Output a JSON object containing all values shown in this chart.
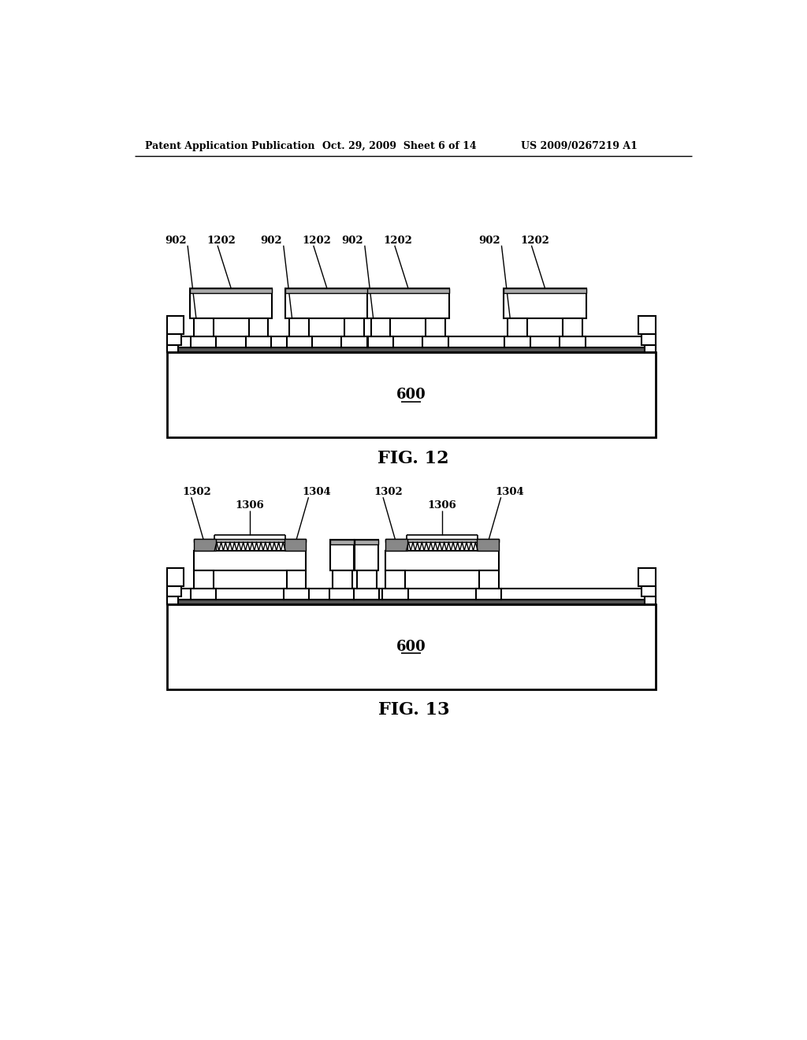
{
  "header_left": "Patent Application Publication",
  "header_mid": "Oct. 29, 2009  Sheet 6 of 14",
  "header_right": "US 2009/0267219 A1",
  "fig12_label": "FIG. 12",
  "fig13_label": "FIG. 13",
  "label_600": "600",
  "bg_color": "#ffffff",
  "line_color": "#000000"
}
